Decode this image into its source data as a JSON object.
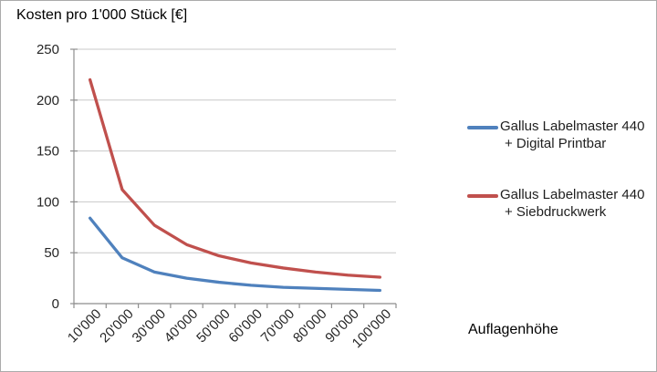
{
  "title": "Kosten pro 1'000 Stück [€]",
  "x_axis_title": "Auflagenhöhe",
  "colors": {
    "series_blue": "#4f81bd",
    "series_red": "#c0504d",
    "axis": "#8e8e8e",
    "gridline": "#c8c8c8",
    "tick_text": "#262626"
  },
  "legend": {
    "items": [
      {
        "line1": "Gallus Labelmaster 440",
        "line2": "+ Digital Printbar",
        "color": "#4f81bd"
      },
      {
        "line1": "Gallus Labelmaster 440",
        "line2": "+ Siebdruckwerk",
        "color": "#c0504d"
      }
    ]
  },
  "chart_data": {
    "type": "line",
    "title": "Kosten pro 1'000 Stück [€]",
    "xlabel": "Auflagenhöhe",
    "ylabel": "Kosten pro 1'000 Stück [€]",
    "categories": [
      "10'000",
      "20'000",
      "30'000",
      "40'000",
      "50'000",
      "60'000",
      "70'000",
      "80'000",
      "90'000",
      "100'000"
    ],
    "yticks": [
      0,
      50,
      100,
      150,
      200,
      250
    ],
    "ylim": [
      0,
      250
    ],
    "grid": "horizontal-only",
    "legend_position": "right",
    "series": [
      {
        "name": "Gallus Labelmaster 440 + Digital Printbar",
        "color": "#4f81bd",
        "values": [
          84,
          45,
          31,
          25,
          21,
          18,
          16,
          15,
          14,
          13
        ]
      },
      {
        "name": "Gallus Labelmaster 440 + Siebdruckwerk",
        "color": "#c0504d",
        "values": [
          220,
          112,
          77,
          58,
          47,
          40,
          35,
          31,
          28,
          26
        ]
      }
    ]
  }
}
